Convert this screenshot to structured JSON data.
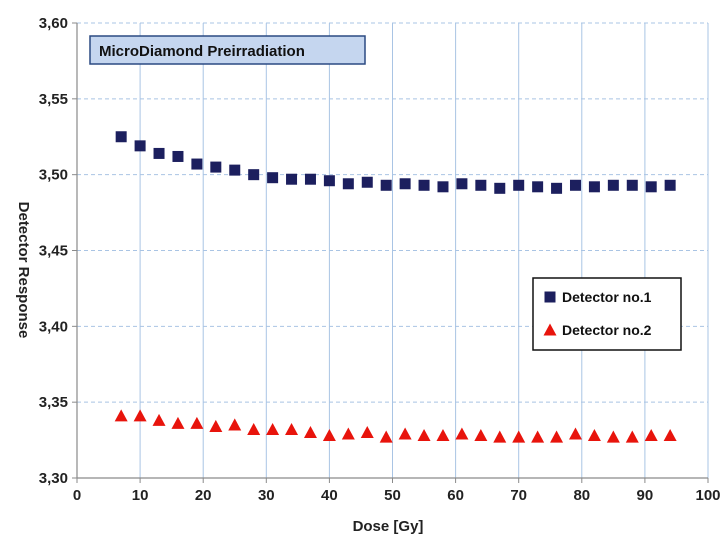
{
  "chart_data": {
    "type": "scatter",
    "title": "MicroDiamond Preirradiation",
    "xlabel": "Dose [Gy]",
    "ylabel": "Detector Response",
    "xlim": [
      0,
      100
    ],
    "ylim": [
      3.3,
      3.6
    ],
    "x_ticks": [
      "0",
      "10",
      "20",
      "30",
      "40",
      "50",
      "60",
      "70",
      "80",
      "90",
      "100"
    ],
    "y_ticks": [
      "3,30",
      "3,35",
      "3,40",
      "3,45",
      "3,50",
      "3,55",
      "3,60"
    ],
    "grid": true,
    "legend_position": "right",
    "series": [
      {
        "name": "Detector no.1",
        "marker": "square",
        "color": "#1c1f5e",
        "x": [
          7,
          10,
          13,
          16,
          19,
          22,
          25,
          28,
          31,
          34,
          37,
          40,
          43,
          46,
          49,
          52,
          55,
          58,
          61,
          64,
          67,
          70,
          73,
          76,
          79,
          82,
          85,
          88,
          91,
          94
        ],
        "y": [
          3.525,
          3.519,
          3.514,
          3.512,
          3.507,
          3.505,
          3.503,
          3.5,
          3.498,
          3.497,
          3.497,
          3.496,
          3.494,
          3.495,
          3.493,
          3.494,
          3.493,
          3.492,
          3.494,
          3.493,
          3.491,
          3.493,
          3.492,
          3.491,
          3.493,
          3.492,
          3.493,
          3.493,
          3.492,
          3.493
        ]
      },
      {
        "name": "Detector no.2",
        "marker": "triangle",
        "color": "#e8140c",
        "x": [
          7,
          10,
          13,
          16,
          19,
          22,
          25,
          28,
          31,
          34,
          37,
          40,
          43,
          46,
          49,
          52,
          55,
          58,
          61,
          64,
          67,
          70,
          73,
          76,
          79,
          82,
          85,
          88,
          91,
          94
        ],
        "y": [
          3.341,
          3.341,
          3.338,
          3.336,
          3.336,
          3.334,
          3.335,
          3.332,
          3.332,
          3.332,
          3.33,
          3.328,
          3.329,
          3.33,
          3.327,
          3.329,
          3.328,
          3.328,
          3.329,
          3.328,
          3.327,
          3.327,
          3.327,
          3.327,
          3.329,
          3.328,
          3.327,
          3.327,
          3.328,
          3.328
        ]
      }
    ]
  },
  "colors": {
    "grid": "#a9c4e4",
    "axis": "#8a8a8a",
    "title_box_fill": "#c5d6ef",
    "title_box_stroke": "#2b4a82",
    "legend_stroke": "#111111"
  }
}
